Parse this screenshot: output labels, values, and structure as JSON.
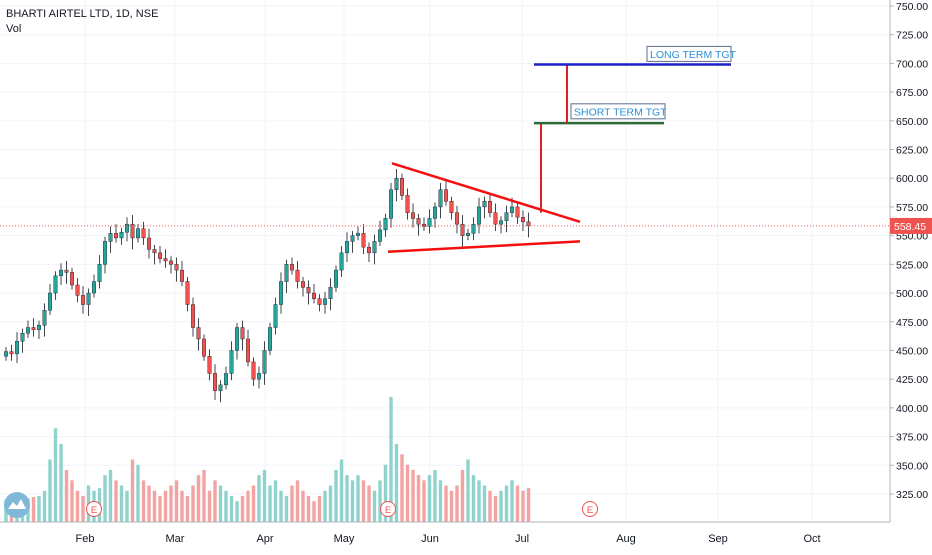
{
  "legend": {
    "title": "BHARTI AIRTEL LTD, 1D, NSE",
    "volume_label": "Vol"
  },
  "price_tag": "558.45",
  "colors": {
    "up": "#26a69a",
    "down": "#ef5350",
    "upVol": "#8fd3cc",
    "downVol": "#f4a3a3",
    "triangle": "#f40f0f",
    "shortTgt": "#2e6b3b",
    "longTgt": "#1c21c8",
    "target_link": "#e02020",
    "label_text": "#2a8fd6",
    "price_tag_bg": "#ef5350"
  },
  "chart_data": {
    "type": "candlestick",
    "y_axis": {
      "min": 300,
      "max": 750,
      "ticks": [
        325,
        350,
        375,
        400,
        425,
        450,
        475,
        500,
        525,
        550,
        575,
        600,
        625,
        650,
        675,
        700,
        725,
        750
      ]
    },
    "x_axis": {
      "labels": [
        "Feb",
        "Mar",
        "Apr",
        "May",
        "Jun",
        "Jul",
        "Aug",
        "Sep",
        "Oct"
      ]
    },
    "last_price": 558.45,
    "candles_close": [
      449,
      447,
      458,
      465,
      470,
      468,
      472,
      485,
      500,
      515,
      520,
      518,
      507,
      498,
      490,
      500,
      510,
      525,
      545,
      552,
      548,
      553,
      560,
      548,
      556,
      548,
      538,
      535,
      530,
      528,
      525,
      520,
      510,
      490,
      470,
      460,
      445,
      430,
      415,
      420,
      430,
      450,
      470,
      460,
      440,
      425,
      430,
      450,
      470,
      490,
      510,
      525,
      520,
      510,
      505,
      500,
      495,
      490,
      495,
      505,
      520,
      535,
      545,
      550,
      552,
      540,
      535,
      545,
      555,
      565,
      590,
      600,
      585,
      570,
      565,
      560,
      558,
      565,
      575,
      590,
      580,
      570,
      560,
      550,
      552,
      560,
      575,
      580,
      570,
      560,
      563,
      570,
      575,
      566,
      562,
      558.45
    ],
    "volumes": [
      42,
      38,
      55,
      40,
      45,
      48,
      50,
      60,
      120,
      180,
      150,
      100,
      80,
      60,
      50,
      70,
      60,
      65,
      90,
      100,
      80,
      70,
      60,
      120,
      110,
      80,
      70,
      60,
      50,
      60,
      70,
      80,
      60,
      50,
      70,
      90,
      100,
      60,
      80,
      70,
      60,
      50,
      40,
      50,
      60,
      70,
      90,
      100,
      70,
      80,
      60,
      50,
      70,
      80,
      60,
      50,
      40,
      50,
      60,
      70,
      100,
      120,
      90,
      80,
      90,
      80,
      70,
      60,
      80,
      110,
      240,
      150,
      130,
      110,
      100,
      90,
      80,
      90,
      100,
      80,
      70,
      60,
      70,
      100,
      120,
      90,
      80,
      70,
      60,
      50,
      60,
      70,
      80,
      70,
      60,
      65
    ],
    "annotations": [
      {
        "type": "label",
        "text": "SHORT TERM TGT",
        "price": 650
      },
      {
        "type": "label",
        "text": "LONG TERM TGT",
        "price": 700
      }
    ],
    "markers": [
      "E",
      "E",
      "E"
    ]
  }
}
